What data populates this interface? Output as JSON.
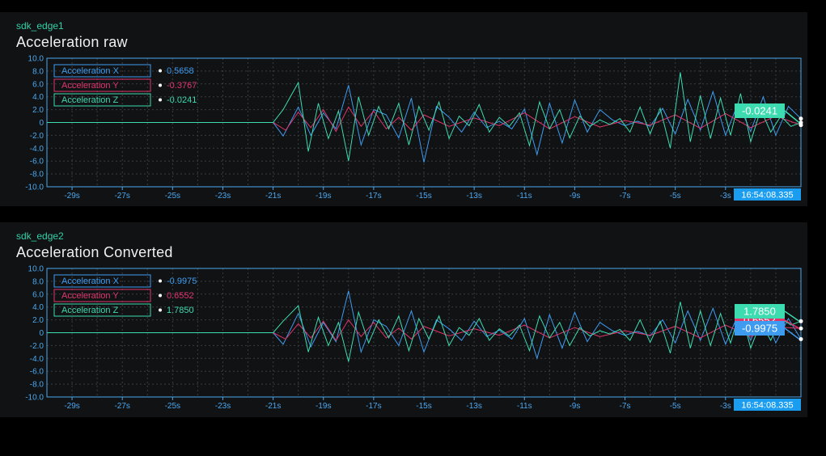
{
  "panels": [
    {
      "device": "sdk_edge1",
      "title": "Acceleration raw",
      "timestamp": "16:54:08.335",
      "legend": [
        {
          "name": "Acceleration X",
          "value": "0.5658"
        },
        {
          "name": "Acceleration Y",
          "value": "-0.3767"
        },
        {
          "name": "Acceleration Z",
          "value": "-0.0241"
        }
      ],
      "tags": [
        "-0.0241"
      ]
    },
    {
      "device": "sdk_edge2",
      "title": "Acceleration Converted",
      "timestamp": "16:54:08.335",
      "legend": [
        {
          "name": "Acceleration X",
          "value": "-0.9975"
        },
        {
          "name": "Acceleration Y",
          "value": "0.6552"
        },
        {
          "name": "Acceleration Z",
          "value": "1.7850"
        }
      ],
      "tags": [
        "0.6552",
        "-0.9975",
        "1.7850"
      ]
    }
  ],
  "colors": {
    "x": "#3d9cf0",
    "y": "#e0356b",
    "z": "#3ddbb0",
    "axis": "#4aa8f0",
    "grid": "#3a3d42",
    "timestamp_bg": "#1a9df0"
  },
  "chart_data": [
    {
      "type": "line",
      "title": "Acceleration raw",
      "ylim": [
        -10,
        10
      ],
      "xlim": [
        -30,
        0
      ],
      "yticks": [
        "10.0",
        "8.0",
        "6.0",
        "4.0",
        "2.0",
        "0",
        "-2.0",
        "-4.0",
        "-6.0",
        "-8.0",
        "-10.0"
      ],
      "xticks": [
        "-29s",
        "-27s",
        "-25s",
        "-23s",
        "-21s",
        "-19s",
        "-17s",
        "-15s",
        "-13s",
        "-11s",
        "-9s",
        "-7s",
        "-5s",
        "-3s"
      ],
      "series": [
        {
          "name": "Acceleration X",
          "x": [
            -30,
            -23,
            -21,
            -20.6,
            -20,
            -19.5,
            -19,
            -18.5,
            -18,
            -17.5,
            -17,
            -16.5,
            -16,
            -15.5,
            -15,
            -14.5,
            -14,
            -13.5,
            -13,
            -12.5,
            -12,
            -11.5,
            -11,
            -10.5,
            -10,
            -9.5,
            -9,
            -8.5,
            -8,
            -7.5,
            -7,
            -6.5,
            -6,
            -5.5,
            -5,
            -4.5,
            -4,
            -3.5,
            -3,
            -2.5,
            -2,
            -1.5,
            -1,
            -0.5,
            0
          ],
          "y": [
            0,
            0,
            0,
            -2.1,
            2.4,
            -2.0,
            1.5,
            -1.0,
            5.8,
            -3.5,
            2.0,
            1.2,
            -2.4,
            3.8,
            -6.2,
            2.5,
            0.8,
            -1.5,
            1.6,
            -0.8,
            0.2,
            -1.0,
            2.1,
            -5.0,
            3.0,
            -3.2,
            3.5,
            -1.5,
            2.0,
            0.4,
            -0.5,
            0.2,
            -0.6,
            2.2,
            -1.8,
            3.6,
            -1.2,
            4.8,
            -2.0,
            3.0,
            -1.4,
            4.0,
            -2.0,
            2.5,
            0.6
          ]
        },
        {
          "name": "Acceleration Y",
          "x": [
            -30,
            -21,
            -20.5,
            -20,
            -19.5,
            -19,
            -18.5,
            -18,
            -17.5,
            -17,
            -16.5,
            -16,
            -15.5,
            -15,
            -14,
            -13,
            -12,
            -11,
            -10,
            -9,
            -8,
            -7,
            -6,
            -5,
            -4,
            -3,
            -2,
            -1,
            0
          ],
          "y": [
            0,
            0,
            -1.2,
            1.6,
            -0.8,
            2.0,
            -1.4,
            2.4,
            -0.6,
            1.8,
            -1.0,
            0.8,
            -1.2,
            1.2,
            -0.6,
            0.7,
            -0.5,
            1.5,
            -1.0,
            0.9,
            -0.7,
            0.3,
            -0.4,
            1.2,
            -0.9,
            1.4,
            -0.8,
            1.0,
            -0.4
          ]
        },
        {
          "name": "Acceleration Z",
          "x": [
            -30,
            -21,
            -20.6,
            -20,
            -19.6,
            -19.2,
            -18.8,
            -18.4,
            -18,
            -17.6,
            -17.2,
            -16.8,
            -16.4,
            -16,
            -15.6,
            -15.2,
            -14.8,
            -14.4,
            -14,
            -13.6,
            -13.2,
            -12.8,
            -12.4,
            -12,
            -11.6,
            -11.2,
            -10.8,
            -10.4,
            -10,
            -9.6,
            -9.2,
            -8.8,
            -8.4,
            -8,
            -7.6,
            -7.2,
            -6.8,
            -6.4,
            -6,
            -5.6,
            -5.2,
            -4.8,
            -4.4,
            -4,
            -3.6,
            -3.2,
            -2.8,
            -2.4,
            -2,
            -1.6,
            -1.2,
            -0.8,
            -0.4,
            0
          ],
          "y": [
            0,
            0,
            2.0,
            6.2,
            -4.5,
            3.0,
            -2.5,
            1.8,
            -6.0,
            4.0,
            -2.0,
            2.5,
            -1.0,
            3.0,
            -3.5,
            2.5,
            -1.2,
            3.2,
            -2.5,
            1.0,
            -0.5,
            2.8,
            -1.5,
            0.8,
            -0.6,
            1.5,
            -3.6,
            3.2,
            -1.0,
            2.0,
            -2.4,
            1.0,
            -0.6,
            0.4,
            -0.3,
            0.6,
            -1.5,
            2.4,
            -1.8,
            2.2,
            -4.0,
            7.8,
            -3.0,
            4.2,
            -2.5,
            3.8,
            -2.0,
            4.5,
            -3.0,
            2.0,
            -1.5,
            1.0,
            -0.6,
            -0.02
          ]
        }
      ]
    },
    {
      "type": "line",
      "title": "Acceleration Converted",
      "ylim": [
        -10,
        10
      ],
      "xlim": [
        -30,
        0
      ],
      "yticks": [
        "10.0",
        "8.0",
        "6.0",
        "4.0",
        "2.0",
        "0",
        "-2.0",
        "-4.0",
        "-6.0",
        "-8.0",
        "-10.0"
      ],
      "xticks": [
        "-29s",
        "-27s",
        "-25s",
        "-23s",
        "-21s",
        "-19s",
        "-17s",
        "-15s",
        "-13s",
        "-11s",
        "-9s",
        "-7s",
        "-5s",
        "-3s"
      ],
      "series": [
        {
          "name": "Acceleration X",
          "x": [
            -30,
            -21,
            -20.6,
            -20,
            -19.5,
            -19,
            -18.5,
            -18,
            -17.5,
            -17,
            -16.5,
            -16,
            -15.5,
            -15,
            -14.5,
            -14,
            -13.5,
            -13,
            -12.5,
            -12,
            -11.5,
            -11,
            -10.5,
            -10,
            -9.5,
            -9,
            -8.5,
            -8,
            -7.5,
            -7,
            -6.5,
            -6,
            -5.5,
            -5,
            -4.5,
            -4,
            -3.5,
            -3,
            -2.5,
            -2,
            -1.5,
            -1,
            -0.5,
            0
          ],
          "y": [
            0,
            0,
            -1.8,
            3.0,
            -2.2,
            1.6,
            -1.4,
            6.5,
            -3.0,
            2.0,
            1.0,
            -2.0,
            3.4,
            -3.0,
            2.0,
            0.6,
            -1.2,
            1.8,
            -0.6,
            0.4,
            -1.0,
            2.2,
            -4.0,
            2.8,
            -2.4,
            3.2,
            -1.4,
            1.6,
            0.3,
            -0.4,
            0.2,
            -0.5,
            2.0,
            -1.6,
            3.4,
            -1.2,
            3.8,
            -1.8,
            2.8,
            -1.2,
            3.6,
            -1.6,
            2.2,
            -1.0
          ]
        },
        {
          "name": "Acceleration Y",
          "x": [
            -30,
            -21,
            -20.5,
            -20,
            -19.5,
            -19,
            -18.5,
            -18,
            -17.5,
            -17,
            -16.5,
            -16,
            -15.5,
            -15,
            -14,
            -13,
            -12,
            -11,
            -10,
            -9,
            -8,
            -7,
            -6,
            -5,
            -4,
            -3,
            -2,
            -1,
            0
          ],
          "y": [
            0,
            0,
            -1.0,
            1.4,
            -0.8,
            1.8,
            -1.2,
            2.0,
            -0.6,
            1.6,
            -0.8,
            0.7,
            -1.0,
            1.0,
            -0.5,
            0.6,
            -0.4,
            1.2,
            -0.8,
            0.8,
            -0.6,
            0.3,
            -0.4,
            1.0,
            -0.8,
            1.2,
            -0.6,
            0.9,
            0.66
          ]
        },
        {
          "name": "Acceleration Z",
          "x": [
            -30,
            -21,
            -20.6,
            -20,
            -19.6,
            -19.2,
            -18.8,
            -18.4,
            -18,
            -17.6,
            -17.2,
            -16.8,
            -16.4,
            -16,
            -15.6,
            -15.2,
            -14.8,
            -14.4,
            -14,
            -13.6,
            -13.2,
            -12.8,
            -12.4,
            -12,
            -11.6,
            -11.2,
            -10.8,
            -10.4,
            -10,
            -9.6,
            -9.2,
            -8.8,
            -8.4,
            -8,
            -7.6,
            -7.2,
            -6.8,
            -6.4,
            -6,
            -5.6,
            -5.2,
            -4.8,
            -4.4,
            -4,
            -3.6,
            -3.2,
            -2.8,
            -2.4,
            -2,
            -1.6,
            -1.2,
            -0.8,
            -0.4,
            0
          ],
          "y": [
            0,
            0,
            1.8,
            4.2,
            -3.0,
            2.4,
            -2.0,
            1.6,
            -4.5,
            3.2,
            -1.6,
            2.0,
            -0.8,
            2.6,
            -2.8,
            2.2,
            -1.0,
            2.6,
            -2.0,
            0.8,
            -0.4,
            2.2,
            -1.2,
            0.6,
            -0.5,
            1.2,
            -2.8,
            2.6,
            -0.8,
            1.6,
            -2.0,
            0.8,
            -0.5,
            0.3,
            -0.2,
            0.5,
            -1.2,
            2.0,
            -1.5,
            1.8,
            -3.2,
            4.8,
            -2.4,
            3.4,
            -2.0,
            3.0,
            -1.6,
            3.6,
            -2.4,
            1.6,
            -1.2,
            2.2,
            1.2,
            1.785
          ]
        }
      ]
    }
  ]
}
